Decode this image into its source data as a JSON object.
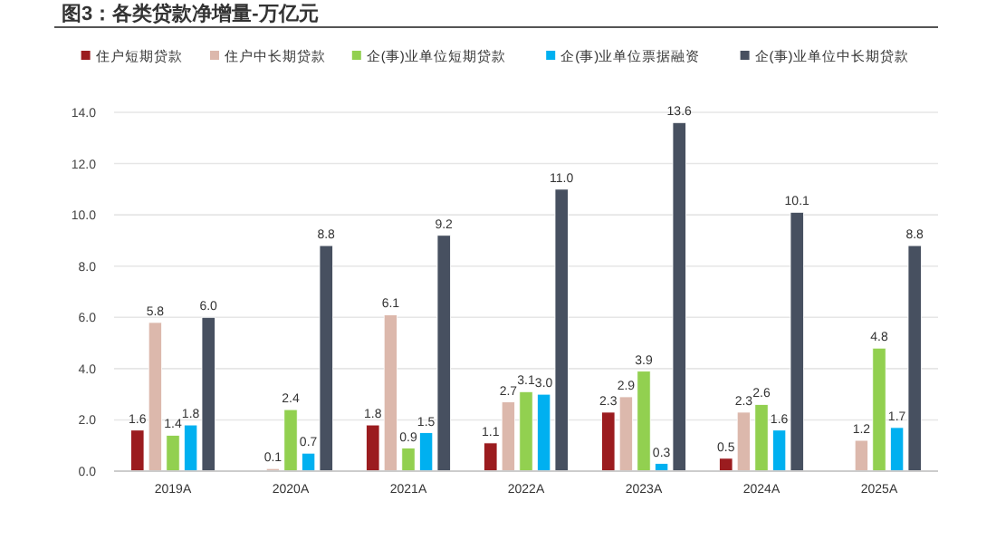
{
  "chart_data": {
    "type": "bar",
    "title": "图3：各类贷款净增量-万亿元",
    "categories": [
      "2019A",
      "2020A",
      "2021A",
      "2022A",
      "2023A",
      "2024A",
      "2025A"
    ],
    "series": [
      {
        "name": "住户短期贷款",
        "color": "#9b1c1f",
        "values": [
          1.6,
          null,
          1.8,
          1.1,
          2.3,
          0.5,
          null
        ],
        "value_labels": [
          "1.6",
          null,
          "1.8",
          "1.1",
          "2.3",
          "0.5",
          null
        ]
      },
      {
        "name": "住户中长期贷款",
        "color": "#dcb8ac",
        "values": [
          5.8,
          0.1,
          6.1,
          2.7,
          2.9,
          2.3,
          1.2
        ],
        "value_labels": [
          "5.8",
          "0.1",
          "6.1",
          "2.7",
          "2.9",
          "2.3",
          "1.2"
        ]
      },
      {
        "name": "企(事)业单位短期贷款",
        "color": "#92d050",
        "values": [
          1.4,
          2.4,
          0.9,
          3.1,
          3.9,
          2.6,
          4.8
        ],
        "value_labels": [
          "1.4",
          "2.4",
          "0.9",
          "3.1",
          "3.9",
          "2.6",
          "4.8"
        ]
      },
      {
        "name": "企(事)业单位票据融资",
        "color": "#00b0f0",
        "values": [
          1.8,
          0.7,
          1.5,
          3.0,
          0.3,
          1.6,
          1.7
        ],
        "value_labels": [
          "1.8",
          "0.7",
          "1.5",
          "3.0",
          "0.3",
          "1.6",
          "1.7"
        ]
      },
      {
        "name": "企(事)业单位中长期贷款",
        "color": "#475060",
        "values": [
          6.0,
          8.8,
          9.2,
          11.0,
          13.6,
          10.1,
          8.8
        ],
        "value_labels": [
          "6.0",
          "8.8",
          "9.2",
          "11.0",
          "13.6",
          "10.1",
          "8.8"
        ]
      }
    ],
    "ylim": [
      0,
      14
    ],
    "yticks": [
      {
        "value": 0,
        "label": "0.0"
      },
      {
        "value": 2,
        "label": "2.0"
      },
      {
        "value": 4,
        "label": "4.0"
      },
      {
        "value": 6,
        "label": "6.0"
      },
      {
        "value": 8,
        "label": "8.0"
      },
      {
        "value": 10,
        "label": "10.0"
      },
      {
        "value": 12,
        "label": "12.0"
      },
      {
        "value": 14,
        "label": "14.0"
      }
    ],
    "grid": "y",
    "legend": "top"
  }
}
